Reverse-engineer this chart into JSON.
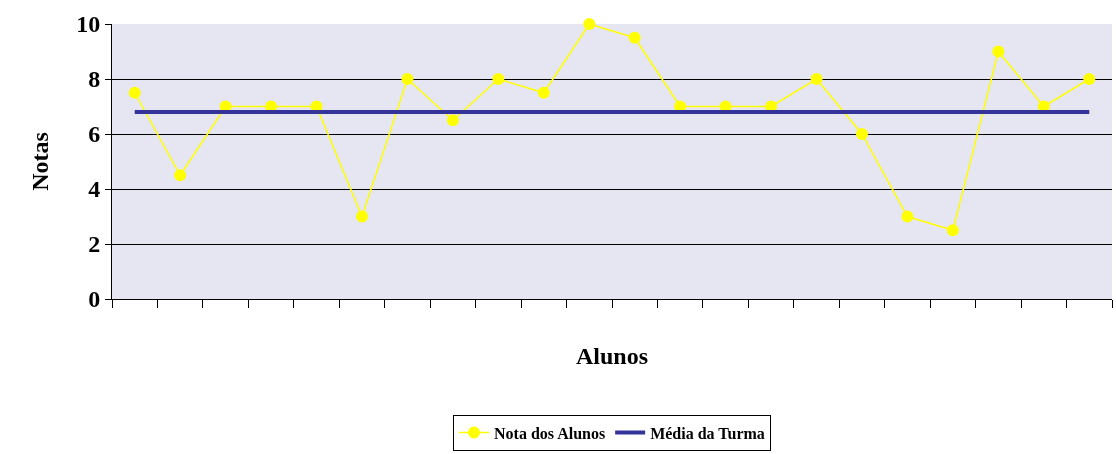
{
  "chart_data": {
    "type": "line",
    "xlabel": "Alunos",
    "ylabel": "Notas",
    "categories": [
      null,
      null,
      null,
      null,
      null,
      null,
      null,
      null,
      null,
      null,
      null,
      null,
      null,
      null,
      null,
      null,
      null,
      null,
      null,
      null,
      null,
      null
    ],
    "series": [
      {
        "name": "Nota dos Alunos",
        "color": "#ffff00",
        "marker": "circle",
        "values": [
          7.5,
          4.5,
          7,
          7,
          7,
          3,
          8,
          6.5,
          8,
          7.5,
          10,
          9.5,
          7,
          7,
          7,
          8,
          6,
          3,
          2.5,
          9,
          7,
          8
        ]
      },
      {
        "name": "Média da Turma",
        "color": "#333399",
        "marker": "none",
        "values": [
          6.8,
          6.8,
          6.8,
          6.8,
          6.8,
          6.8,
          6.8,
          6.8,
          6.8,
          6.8,
          6.8,
          6.8,
          6.8,
          6.8,
          6.8,
          6.8,
          6.8,
          6.8,
          6.8,
          6.8,
          6.8,
          6.8
        ]
      }
    ],
    "ylim": [
      0,
      10
    ],
    "yticks": [
      0,
      2,
      4,
      6,
      8,
      10
    ],
    "grid": "y",
    "legend": "bottom",
    "tick_labels": "y"
  }
}
